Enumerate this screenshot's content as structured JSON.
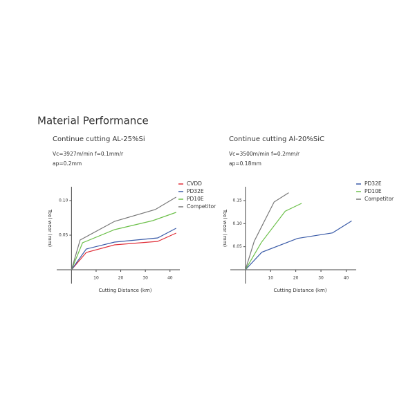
{
  "title": "Material Performance",
  "chart_data": [
    {
      "type": "line",
      "title": "Continue cutting AL-25%Si",
      "notes": [
        "Vc=3927m/min    f=0.1mm/r",
        "ap=0.2mm"
      ],
      "xlabel": "Cutting Distance (km)",
      "ylabel": "Tool wear (mm)",
      "xlim": [
        -6,
        44
      ],
      "ylim": [
        -0.02,
        0.12
      ],
      "xticks": [
        10,
        20,
        30,
        40
      ],
      "yticks": [
        0.05,
        {
          "value": 0.1,
          "label": "0.10"
        }
      ],
      "series": [
        {
          "name": "CVDD",
          "color": "#e0303a",
          "x": [
            0,
            6,
            17.5,
            35,
            42.5
          ],
          "values": [
            0,
            0.025,
            0.036,
            0.041,
            0.053
          ]
        },
        {
          "name": "PD32E",
          "color": "#3a5ba8",
          "x": [
            0,
            6,
            17.5,
            35,
            42.5
          ],
          "values": [
            0,
            0.03,
            0.04,
            0.046,
            0.06
          ]
        },
        {
          "name": "PD10E",
          "color": "#6cc04a",
          "x": [
            0,
            4.5,
            17.5,
            33,
            42.5
          ],
          "values": [
            0,
            0.039,
            0.058,
            0.071,
            0.083
          ]
        },
        {
          "name": "Competitor",
          "color": "#777777",
          "x": [
            0,
            3.5,
            17.5,
            34,
            42.5
          ],
          "values": [
            0,
            0.043,
            0.07,
            0.087,
            0.105
          ]
        }
      ]
    },
    {
      "type": "line",
      "title": "Continue cutting Al-20%SiC",
      "notes": [
        "Vc=3500m/min    f=0.2mm/r",
        "ap=0.18mm"
      ],
      "xlabel": "Cutting Distance (km)",
      "ylabel": "Tool wear (mm)",
      "xlim": [
        -6,
        44
      ],
      "ylim": [
        -0.03,
        0.18
      ],
      "xticks": [
        10,
        20,
        30,
        40
      ],
      "yticks": [
        0.05,
        {
          "value": 0.1,
          "label": "0.10"
        },
        0.15
      ],
      "series": [
        {
          "name": "PD32E",
          "color": "#3a5ba8",
          "x": [
            0,
            6.5,
            20.7,
            34.6,
            42.2
          ],
          "values": [
            0,
            0.038,
            0.068,
            0.08,
            0.106
          ]
        },
        {
          "name": "PD10E",
          "color": "#6cc04a",
          "x": [
            0,
            6.3,
            15.8,
            22.3
          ],
          "values": [
            0,
            0.059,
            0.127,
            0.144
          ]
        },
        {
          "name": "Competitor",
          "color": "#777777",
          "x": [
            0,
            3.5,
            11.4,
            17.2
          ],
          "values": [
            0,
            0.062,
            0.147,
            0.167
          ]
        }
      ]
    }
  ]
}
